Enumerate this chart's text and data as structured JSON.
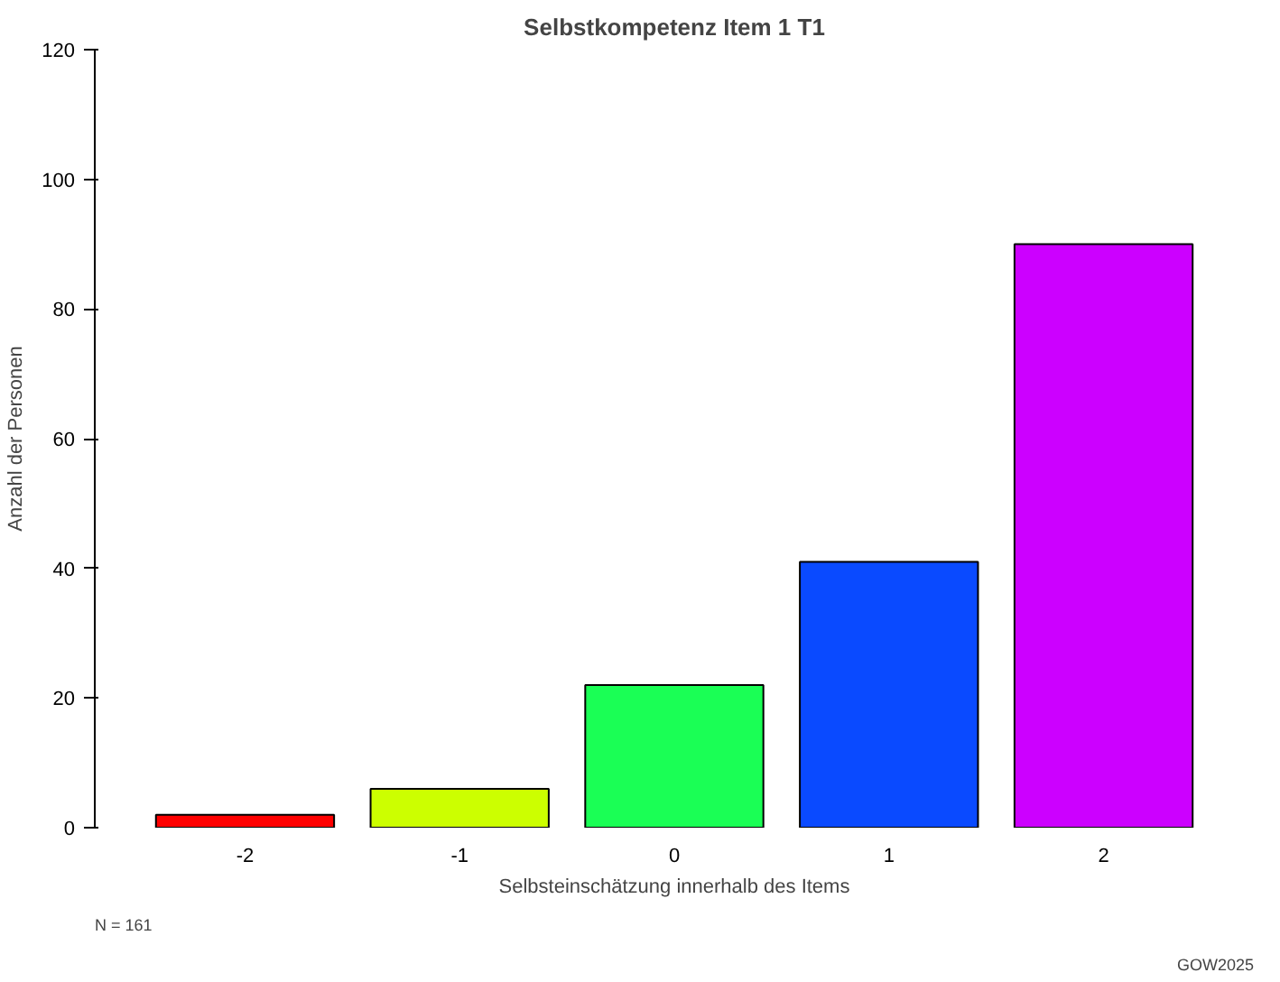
{
  "chart_data": {
    "type": "bar",
    "title": "Selbstkompetenz Item 1 T1",
    "xlabel": "Selbsteinschätzung innerhalb des Items",
    "ylabel": "Anzahl der Personen",
    "categories": [
      "-2",
      "-1",
      "0",
      "1",
      "2"
    ],
    "values": [
      2,
      6,
      22,
      41,
      90
    ],
    "colors": [
      "#ff0000",
      "#ccff00",
      "#1aff55",
      "#0a4aff",
      "#cc00ff"
    ],
    "ylim": [
      0,
      120
    ],
    "yticks": [
      0,
      20,
      40,
      60,
      80,
      100,
      120
    ],
    "grid": false,
    "annotations": [
      "N = 161",
      "GOW2025"
    ]
  }
}
